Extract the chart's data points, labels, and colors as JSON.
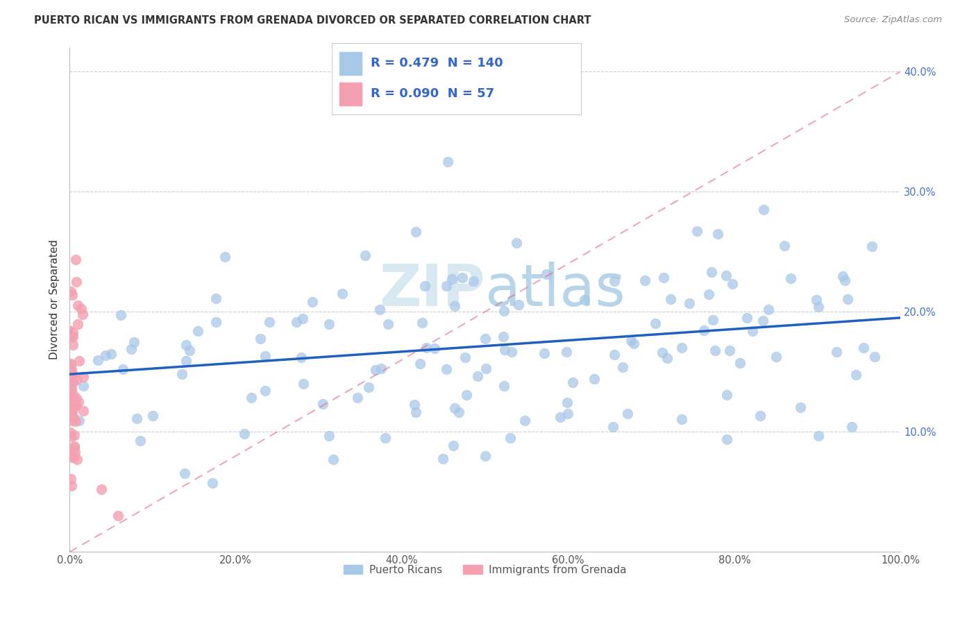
{
  "title": "PUERTO RICAN VS IMMIGRANTS FROM GRENADA DIVORCED OR SEPARATED CORRELATION CHART",
  "source": "Source: ZipAtlas.com",
  "ylabel": "Divorced or Separated",
  "xlim": [
    0.0,
    1.0
  ],
  "ylim": [
    0.0,
    0.42
  ],
  "x_ticks": [
    0.0,
    0.2,
    0.4,
    0.6,
    0.8,
    1.0
  ],
  "x_tick_labels": [
    "0.0%",
    "20.0%",
    "40.0%",
    "60.0%",
    "80.0%",
    "100.0%"
  ],
  "y_ticks": [
    0.0,
    0.1,
    0.2,
    0.3,
    0.4
  ],
  "y_tick_labels": [
    "",
    "10.0%",
    "20.0%",
    "30.0%",
    "40.0%"
  ],
  "blue_R": 0.479,
  "blue_N": 140,
  "pink_R": 0.09,
  "pink_N": 57,
  "blue_color": "#a8c8e8",
  "pink_color": "#f4a0b0",
  "blue_edge_color": "#7aaed4",
  "pink_edge_color": "#e87090",
  "blue_line_color": "#2060c0",
  "pink_line_color": "#e07080",
  "grid_color": "#cccccc",
  "watermark_color": "#d8e8f0",
  "tick_color": "#4472C4",
  "title_color": "#333333",
  "source_color": "#888888",
  "ylabel_color": "#333333",
  "blue_line_start_y": 0.148,
  "blue_line_end_y": 0.195,
  "pink_line_start_y": 0.0,
  "pink_line_end_y": 0.4,
  "legend_label_blue": "Puerto Ricans",
  "legend_label_pink": "Immigrants from Grenada"
}
